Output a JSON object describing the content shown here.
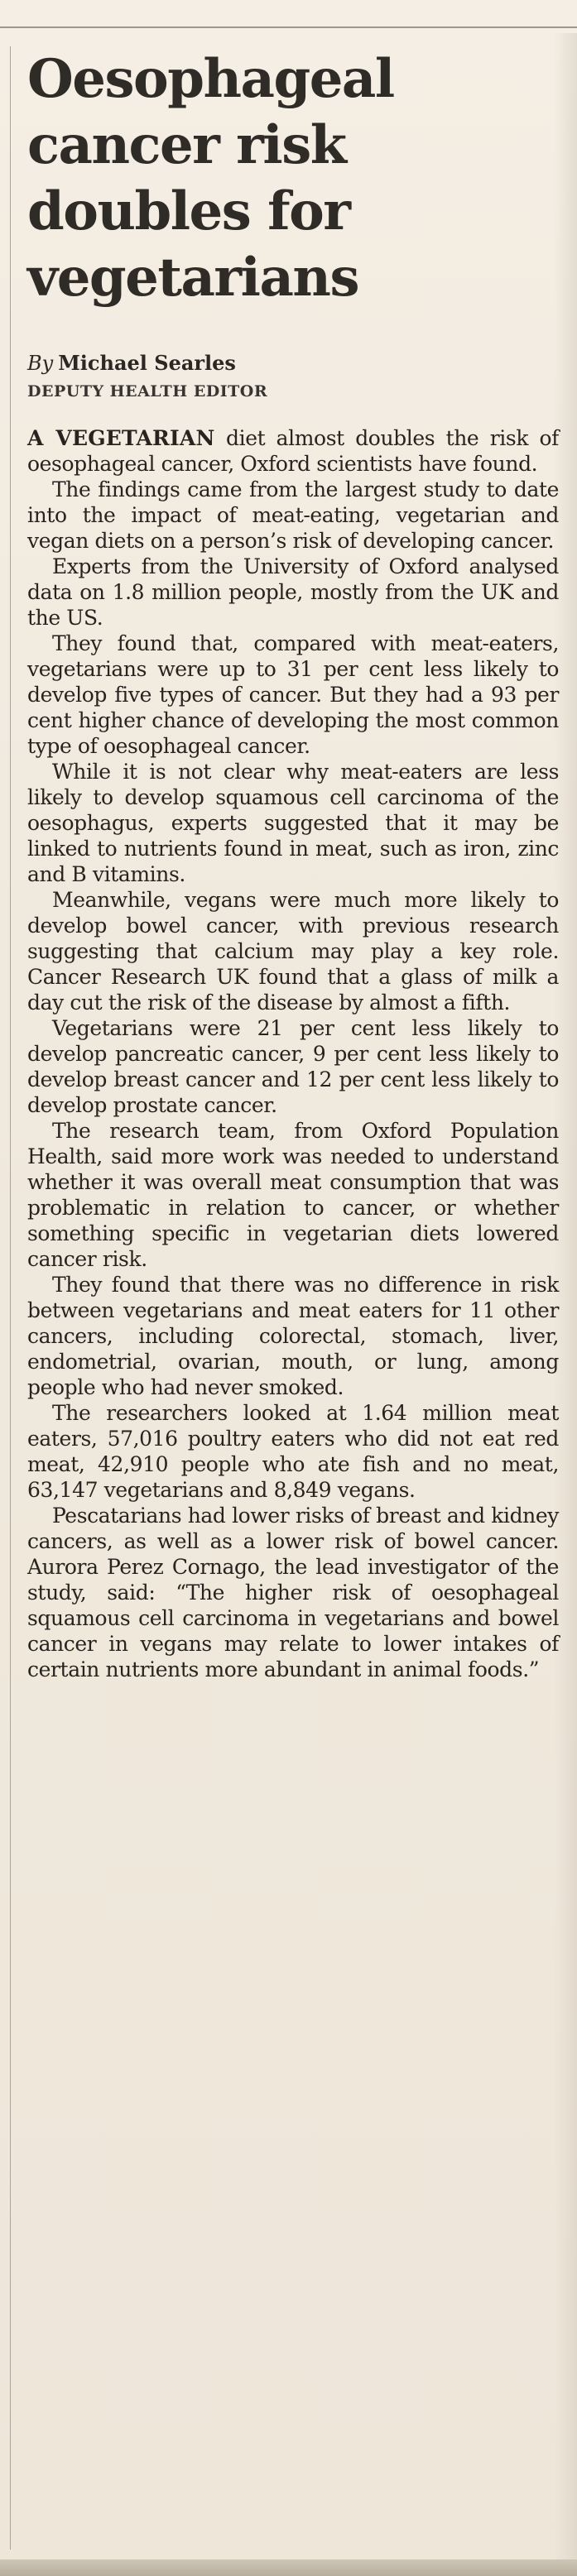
{
  "article": {
    "headline": "Oesophageal cancer risk doubles for vegetarians",
    "byline_prefix": "By",
    "author": "Michael Searles",
    "role": "DEPUTY HEALTH EDITOR",
    "lead_caps": "A VEGETARIAN",
    "paragraphs": [
      " diet almost doubles the risk of oesophageal cancer, Oxford scientists have found.",
      "The findings came from the largest study to date into the impact of meat-eating, vegetarian and vegan diets on a person’s risk of developing cancer.",
      "Experts from the University of Oxford analysed data on 1.8 million people, mostly from the UK and the US.",
      "They found that, compared with meat-eaters, vegetarians were up to 31 per cent less likely to develop five types of cancer. But they had a 93 per cent higher chance of developing the most common type of oesophageal cancer.",
      "While it is not clear why meat-eaters are less likely to develop squamous cell carcinoma of the oesophagus, experts suggested that it may be linked to nutrients found in meat, such as iron, zinc and B vitamins.",
      "Meanwhile, vegans were much more likely to develop bowel cancer, with previous research suggesting that calcium may play a key role. Cancer Research UK found that a glass of milk a day cut the risk of the disease by almost a fifth.",
      "Vegetarians were 21 per cent less likely to develop pancreatic cancer, 9 per cent less likely to develop breast cancer and 12 per cent less likely to develop prostate cancer.",
      "The research team, from Oxford Population Health, said more work was needed to understand whether it was overall meat consumption that was problematic in relation to cancer, or whether something specific in vegetarian diets lowered cancer risk.",
      "They found that there was no difference in risk between vegetarians and meat eaters for 11 other cancers, including colorectal, stomach, liver, endometrial, ovarian, mouth, or lung, among people who had never smoked.",
      "The researchers looked at 1.64 million meat eaters, 57,016 poultry eaters who did not eat red meat, 42,910 people who ate fish and no meat, 63,147 vegetarians and 8,849 vegans.",
      "Pescatarians had lower risks of breast and kidney cancers, as well as a lower risk of bowel cancer. Aurora Perez Cornago, the lead investigator of the study, said: “The higher risk of oesophageal squamous cell carcinoma in vegetarians and bowel cancer in vegans may relate to lower intakes of certain nutrients more abundant in animal foods.”"
    ]
  }
}
